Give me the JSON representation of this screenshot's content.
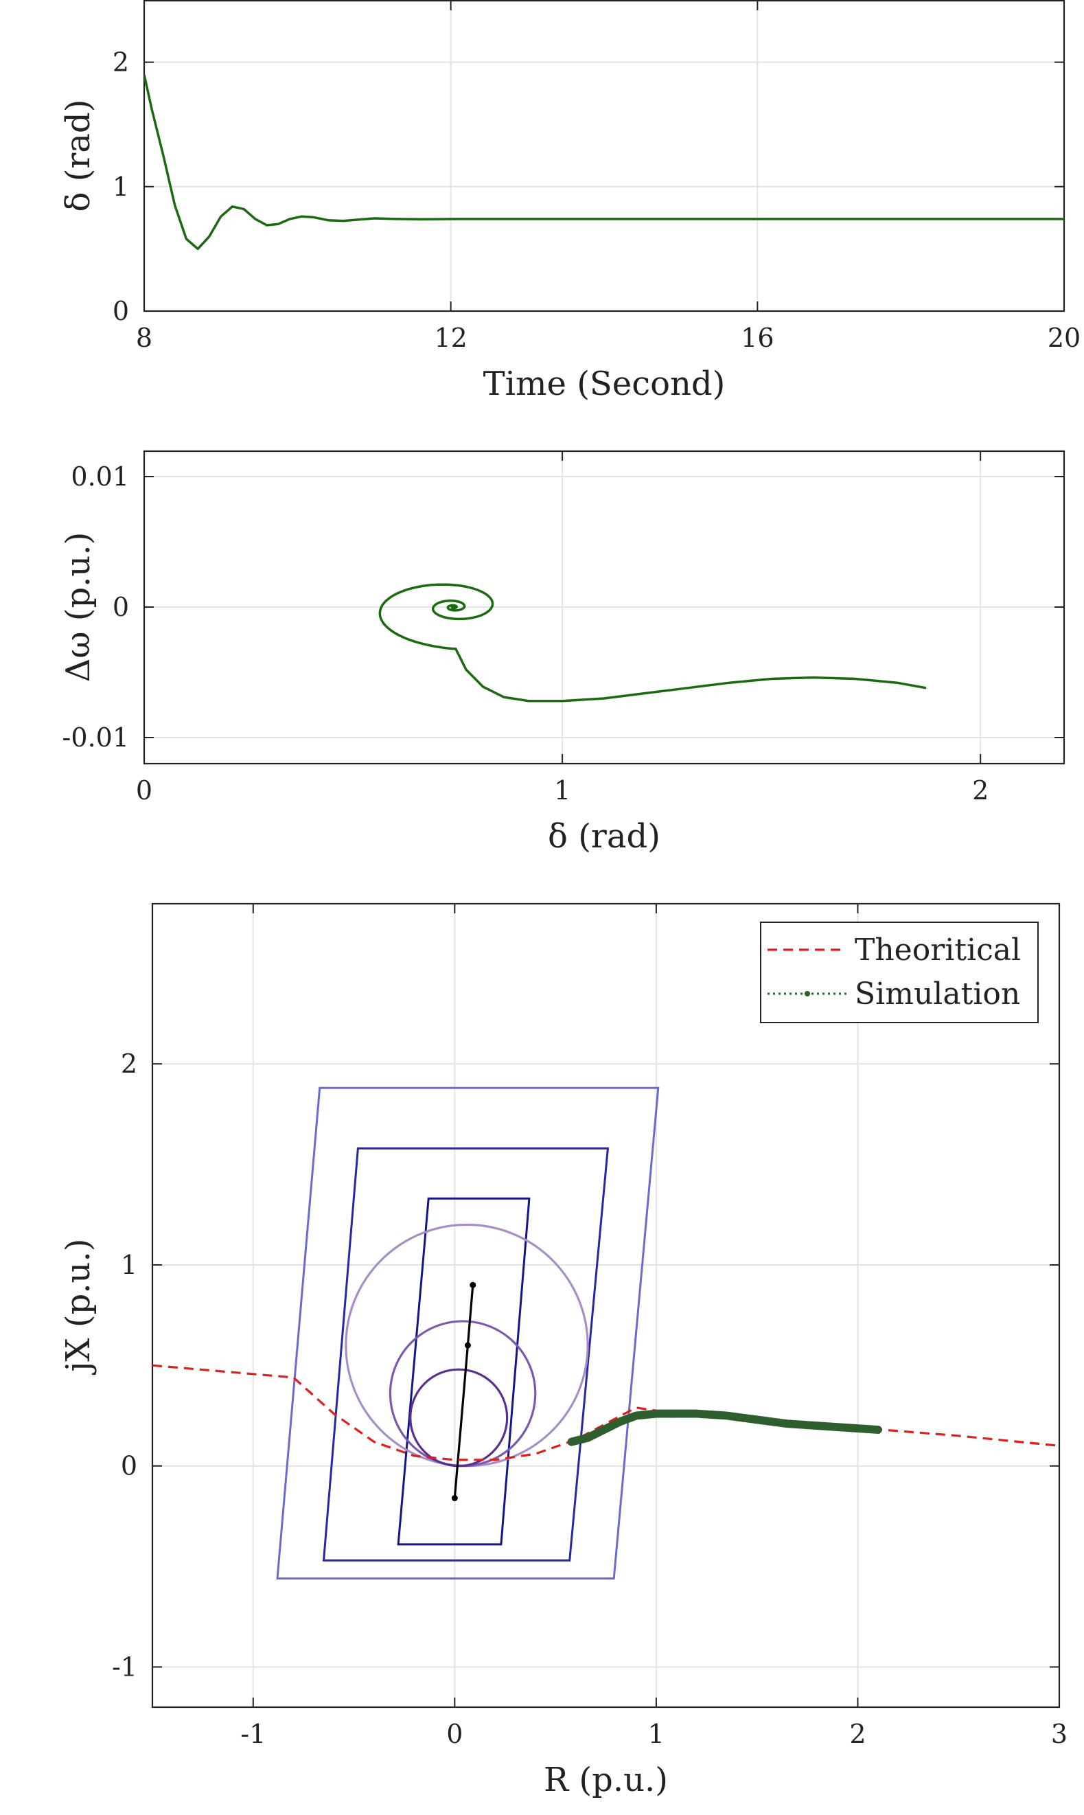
{
  "chart_data": [
    {
      "type": "line",
      "xlabel": "Time (Second)",
      "ylabel": "δ (rad)",
      "xlim": [
        8,
        20
      ],
      "ylim": [
        0,
        2.5
      ],
      "xticks": [
        {
          "value": 8,
          "label": "8"
        },
        {
          "value": 12,
          "label": "12"
        },
        {
          "value": 16,
          "label": "16"
        },
        {
          "value": 20,
          "label": "20"
        }
      ],
      "yticks": [
        {
          "value": 0,
          "label": "0"
        },
        {
          "value": 1,
          "label": "1"
        },
        {
          "value": 2,
          "label": "2"
        }
      ],
      "grid": true,
      "series": [
        {
          "color": "#1a6b10",
          "x": [
            8.0,
            8.1,
            8.25,
            8.4,
            8.55,
            8.7,
            8.85,
            9.0,
            9.15,
            9.3,
            9.45,
            9.6,
            9.75,
            9.9,
            10.05,
            10.2,
            10.4,
            10.6,
            10.8,
            11.0,
            11.3,
            11.6,
            12.0,
            13.0,
            14.0,
            16.0,
            18.0,
            20.0
          ],
          "y": [
            1.9,
            1.62,
            1.25,
            0.85,
            0.58,
            0.5,
            0.6,
            0.76,
            0.84,
            0.82,
            0.74,
            0.69,
            0.7,
            0.74,
            0.76,
            0.755,
            0.73,
            0.725,
            0.735,
            0.745,
            0.74,
            0.738,
            0.74,
            0.74,
            0.74,
            0.74,
            0.74,
            0.74
          ]
        }
      ]
    },
    {
      "type": "line",
      "xlabel": "δ (rad)",
      "ylabel": "Δω (p.u.)",
      "xlim": [
        0,
        2.2
      ],
      "ylim": [
        -0.012,
        0.012
      ],
      "xticks": [
        {
          "value": 0,
          "label": "0"
        },
        {
          "value": 1,
          "label": "1"
        },
        {
          "value": 2,
          "label": "2"
        }
      ],
      "yticks": [
        {
          "value": 0.01,
          "label": "0.01"
        },
        {
          "value": 0,
          "label": "0"
        },
        {
          "value": -0.01,
          "label": "-0.01"
        }
      ],
      "grid": true,
      "series": [
        {
          "color": "#1a6b10",
          "spiral": {
            "center_x": 0.74,
            "center_y": 0.0,
            "start_angle_deg": 270,
            "turns": 4.2,
            "r_x": 0.25,
            "r_y": 0.0032
          },
          "tail": {
            "x": [
              1.87,
              1.8,
              1.7,
              1.6,
              1.5,
              1.4,
              1.3,
              1.2,
              1.1,
              1.0,
              0.92,
              0.86,
              0.81,
              0.77,
              0.745
            ],
            "y": [
              -0.0062,
              -0.0058,
              -0.0055,
              -0.0054,
              -0.0055,
              -0.0058,
              -0.0062,
              -0.0066,
              -0.007,
              -0.0072,
              -0.0072,
              -0.0069,
              -0.0061,
              -0.0048,
              -0.0032
            ]
          }
        }
      ]
    },
    {
      "type": "line",
      "xlabel": "R (p.u.)",
      "ylabel": "jX (p.u.)",
      "xlim": [
        -1.5,
        3.0
      ],
      "ylim": [
        -1.2,
        2.8
      ],
      "xticks": [
        {
          "value": -1,
          "label": "-1"
        },
        {
          "value": 0,
          "label": "0"
        },
        {
          "value": 1,
          "label": "1"
        },
        {
          "value": 2,
          "label": "2"
        },
        {
          "value": 3,
          "label": "3"
        }
      ],
      "yticks": [
        {
          "value": -1,
          "label": "-1"
        },
        {
          "value": 0,
          "label": "0"
        },
        {
          "value": 1,
          "label": "1"
        },
        {
          "value": 2,
          "label": "2"
        }
      ],
      "grid": true,
      "legend": "top-right",
      "series": [
        {
          "name": "Theoritical",
          "style": "dashed",
          "color": "#e01e1e",
          "x": [
            -1.5,
            -0.8,
            -0.6,
            -0.4,
            -0.2,
            0.0,
            0.2,
            0.4,
            0.6,
            0.75,
            0.9,
            1.1,
            1.5,
            2.0,
            2.5,
            3.0
          ],
          "y": [
            0.5,
            0.44,
            0.26,
            0.12,
            0.05,
            0.03,
            0.03,
            0.06,
            0.13,
            0.21,
            0.29,
            0.26,
            0.23,
            0.19,
            0.15,
            0.1
          ]
        },
        {
          "name": "Simulation",
          "style": "dotted-markers",
          "color": "#2e5e2e",
          "x": [
            0.58,
            0.66,
            0.74,
            0.82,
            0.9,
            1.0,
            1.1,
            1.2,
            1.35,
            1.5,
            1.65,
            1.8,
            1.95,
            2.1
          ],
          "y": [
            0.12,
            0.14,
            0.18,
            0.22,
            0.25,
            0.26,
            0.26,
            0.26,
            0.25,
            0.23,
            0.21,
            0.2,
            0.19,
            0.18
          ]
        }
      ],
      "zones": [
        {
          "shape": "quad",
          "color": "#6b6bcf",
          "points": [
            [
              -0.88,
              -0.56
            ],
            [
              0.79,
              -0.56
            ],
            [
              1.01,
              1.88
            ],
            [
              -0.67,
              1.88
            ]
          ]
        },
        {
          "shape": "quad",
          "color": "#2626a6",
          "points": [
            [
              -0.65,
              -0.47
            ],
            [
              0.57,
              -0.47
            ],
            [
              0.76,
              1.58
            ],
            [
              -0.48,
              1.58
            ]
          ]
        },
        {
          "shape": "quad",
          "color": "#14148c",
          "points": [
            [
              -0.28,
              -0.39
            ],
            [
              0.23,
              -0.39
            ],
            [
              0.37,
              1.33
            ],
            [
              -0.13,
              1.33
            ]
          ]
        },
        {
          "shape": "circle",
          "color": "#a78fc6",
          "cx": 0.06,
          "cy": 0.6,
          "r": 0.6
        },
        {
          "shape": "circle",
          "color": "#7d58ae",
          "cx": 0.04,
          "cy": 0.36,
          "r": 0.36
        },
        {
          "shape": "circle",
          "color": "#5a2e92",
          "cx": 0.02,
          "cy": 0.24,
          "r": 0.24
        }
      ],
      "impedance_line": {
        "color": "#000000",
        "x": [
          0.0,
          0.065,
          0.09
        ],
        "y": [
          -0.16,
          0.6,
          0.9
        ]
      }
    }
  ]
}
